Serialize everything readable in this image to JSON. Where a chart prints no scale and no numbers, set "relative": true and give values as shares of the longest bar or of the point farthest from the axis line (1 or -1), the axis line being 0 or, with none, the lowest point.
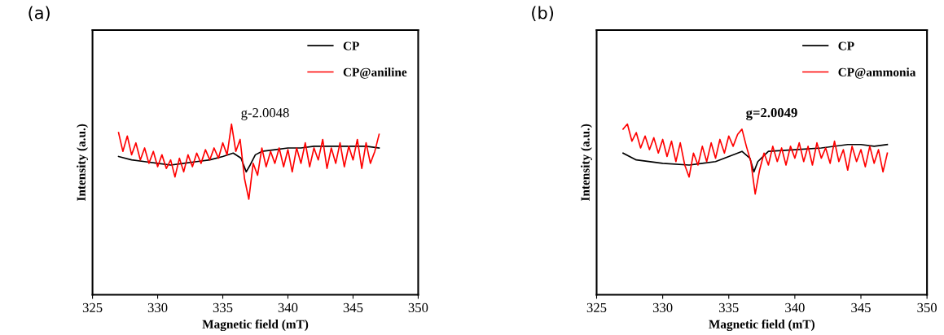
{
  "chart_data": [
    {
      "type": "line",
      "relative": true,
      "xlabel": "Magnetic field (mT)",
      "ylabel": "Intensity (a.u.)",
      "xlim": [
        325,
        350
      ],
      "xticks": [
        325,
        330,
        335,
        340,
        345,
        350
      ],
      "tick_labels": "x",
      "legend": "top right",
      "grid": false,
      "annotations": [
        "(a)",
        "g-2.0048"
      ],
      "series": [
        {
          "name": "CP",
          "color": "#000000",
          "x": [
            327,
            328,
            329,
            330,
            331,
            332,
            333,
            334,
            335,
            335.8,
            336.4,
            336.8,
            337.1,
            337.5,
            338,
            339,
            340,
            341,
            342,
            343,
            344,
            345,
            346,
            347
          ],
          "values": [
            0.81,
            0.79,
            0.78,
            0.77,
            0.76,
            0.77,
            0.78,
            0.79,
            0.81,
            0.83,
            0.8,
            0.72,
            0.76,
            0.82,
            0.84,
            0.85,
            0.86,
            0.86,
            0.87,
            0.87,
            0.87,
            0.87,
            0.87,
            0.86
          ]
        },
        {
          "name": "CP@aniline",
          "color": "#ff0000",
          "x": [
            327,
            327.33,
            327.67,
            328,
            328.33,
            328.67,
            329,
            329.33,
            329.67,
            330,
            330.33,
            330.67,
            331,
            331.33,
            331.67,
            332,
            332.33,
            332.67,
            333,
            333.33,
            333.67,
            334,
            334.33,
            334.67,
            335,
            335.33,
            335.67,
            336,
            336.33,
            336.67,
            337,
            337.33,
            337.67,
            338,
            338.33,
            338.67,
            339,
            339.33,
            339.67,
            340,
            340.33,
            340.67,
            341,
            341.33,
            341.67,
            342,
            342.33,
            342.67,
            343,
            343.33,
            343.67,
            344,
            344.33,
            344.67,
            345,
            345.33,
            345.67,
            346,
            346.33,
            346.67,
            347
          ],
          "values": [
            0.95,
            0.84,
            0.93,
            0.82,
            0.89,
            0.79,
            0.86,
            0.77,
            0.84,
            0.75,
            0.82,
            0.74,
            0.79,
            0.69,
            0.8,
            0.72,
            0.82,
            0.75,
            0.83,
            0.77,
            0.85,
            0.79,
            0.86,
            0.8,
            0.89,
            0.82,
            1,
            0.84,
            0.91,
            0.68,
            0.56,
            0.77,
            0.7,
            0.86,
            0.75,
            0.84,
            0.77,
            0.86,
            0.75,
            0.85,
            0.72,
            0.86,
            0.77,
            0.89,
            0.75,
            0.86,
            0.79,
            0.91,
            0.74,
            0.86,
            0.77,
            0.89,
            0.75,
            0.87,
            0.79,
            0.91,
            0.74,
            0.89,
            0.77,
            0.84,
            0.94
          ]
        }
      ]
    },
    {
      "type": "line",
      "relative": true,
      "xlabel": "Magnetic field (mT)",
      "ylabel": "Intensity (a.u.)",
      "xlim": [
        325,
        350
      ],
      "xticks": [
        325,
        330,
        335,
        340,
        345,
        350
      ],
      "tick_labels": "x",
      "legend": "top right",
      "grid": false,
      "annotations": [
        "(b)",
        "g=2.0049"
      ],
      "series": [
        {
          "name": "CP",
          "color": "#000000",
          "x": [
            327,
            328,
            330,
            332,
            333,
            334,
            335,
            336,
            336.6,
            336.9,
            337.2,
            337.6,
            338,
            340,
            342,
            344,
            345,
            346,
            347
          ],
          "values": [
            0.83,
            0.79,
            0.77,
            0.76,
            0.77,
            0.78,
            0.81,
            0.84,
            0.8,
            0.72,
            0.78,
            0.81,
            0.84,
            0.85,
            0.86,
            0.88,
            0.88,
            0.87,
            0.88
          ]
        },
        {
          "name": "CP@ammonia",
          "color": "#ff0000",
          "x": [
            327,
            327.33,
            327.67,
            328,
            328.33,
            328.67,
            329,
            329.33,
            329.67,
            330,
            330.33,
            330.67,
            331,
            331.33,
            331.67,
            332,
            332.33,
            332.67,
            333,
            333.33,
            333.67,
            334,
            334.33,
            334.67,
            335,
            335.33,
            335.67,
            336,
            336.33,
            336.67,
            337,
            337.33,
            337.67,
            338,
            338.33,
            338.67,
            339,
            339.33,
            339.67,
            340,
            340.33,
            340.67,
            341,
            341.33,
            341.67,
            342,
            342.33,
            342.67,
            343,
            343.33,
            343.67,
            344,
            344.33,
            344.67,
            345,
            345.33,
            345.67,
            346,
            346.33,
            346.67,
            347
          ],
          "values": [
            0.97,
            1,
            0.9,
            0.95,
            0.86,
            0.93,
            0.85,
            0.92,
            0.83,
            0.91,
            0.81,
            0.9,
            0.78,
            0.89,
            0.76,
            0.69,
            0.83,
            0.76,
            0.87,
            0.78,
            0.89,
            0.8,
            0.91,
            0.83,
            0.93,
            0.87,
            0.94,
            0.97,
            0.87,
            0.78,
            0.59,
            0.73,
            0.83,
            0.76,
            0.87,
            0.78,
            0.86,
            0.76,
            0.87,
            0.8,
            0.89,
            0.78,
            0.87,
            0.76,
            0.89,
            0.8,
            0.86,
            0.77,
            0.9,
            0.78,
            0.85,
            0.73,
            0.87,
            0.78,
            0.85,
            0.75,
            0.87,
            0.77,
            0.85,
            0.72,
            0.83
          ]
        }
      ]
    }
  ]
}
